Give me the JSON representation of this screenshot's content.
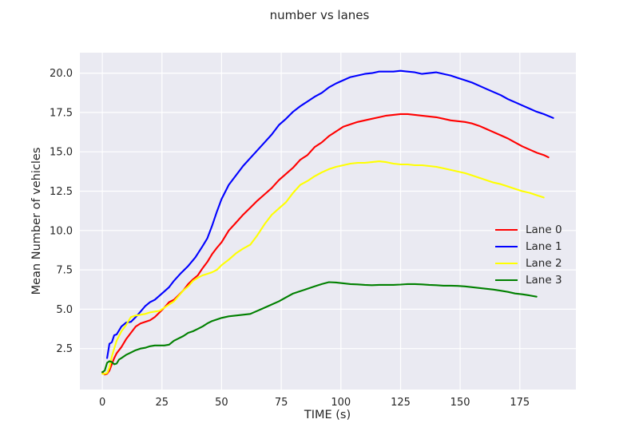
{
  "chart_data": {
    "type": "line",
    "title": "number vs lanes",
    "xlabel": "TIME (s)",
    "ylabel": "Mean Number of vehicles",
    "xlim": [
      -9.4,
      198.5
    ],
    "ylim": [
      -0.1,
      21.3
    ],
    "xticks": [
      0,
      25,
      50,
      75,
      100,
      125,
      150,
      175
    ],
    "xtick_labels": [
      "0",
      "25",
      "50",
      "75",
      "100",
      "125",
      "150",
      "175"
    ],
    "yticks": [
      2.5,
      5.0,
      7.5,
      10.0,
      12.5,
      15.0,
      17.5,
      20.0
    ],
    "ytick_labels": [
      "2.5",
      "5.0",
      "7.5",
      "10.0",
      "12.5",
      "15.0",
      "17.5",
      "20.0"
    ],
    "grid": true,
    "background": "#eaeaf2",
    "grid_color": "#ffffff",
    "legend": {
      "position": "right-middle",
      "labels": [
        "Lane 0",
        "Lane 1",
        "Lane 2",
        "Lane 3"
      ]
    },
    "series": [
      {
        "name": "Lane 0",
        "color": "#ff0000",
        "x": [
          0,
          1,
          2,
          3,
          4,
          5,
          6,
          7,
          8,
          10,
          12,
          14,
          16,
          18,
          20,
          22,
          24,
          26,
          28,
          30,
          32,
          34,
          36,
          38,
          40,
          42,
          44,
          46,
          48,
          50,
          53,
          56,
          59,
          62,
          65,
          68,
          71,
          74,
          77,
          80,
          83,
          86,
          89,
          92,
          95,
          98,
          101,
          104,
          107,
          110,
          113,
          116,
          119,
          122,
          125,
          128,
          131,
          134,
          137,
          140,
          143,
          146,
          149,
          152,
          155,
          158,
          161,
          164,
          167,
          170,
          173,
          176,
          179,
          182,
          185,
          187
        ],
        "y": [
          1.0,
          0.85,
          0.9,
          1.1,
          1.5,
          1.9,
          2.2,
          2.4,
          2.6,
          3.1,
          3.5,
          3.9,
          4.1,
          4.2,
          4.3,
          4.5,
          4.8,
          5.1,
          5.45,
          5.6,
          5.9,
          6.2,
          6.6,
          6.9,
          7.15,
          7.6,
          8.0,
          8.5,
          8.9,
          9.25,
          10.0,
          10.5,
          11.0,
          11.45,
          11.9,
          12.3,
          12.7,
          13.2,
          13.6,
          14.0,
          14.5,
          14.8,
          15.3,
          15.6,
          16.0,
          16.3,
          16.6,
          16.75,
          16.9,
          17.0,
          17.1,
          17.2,
          17.3,
          17.35,
          17.4,
          17.4,
          17.35,
          17.3,
          17.25,
          17.2,
          17.1,
          17.0,
          16.95,
          16.9,
          16.8,
          16.65,
          16.45,
          16.25,
          16.05,
          15.85,
          15.6,
          15.35,
          15.15,
          14.95,
          14.8,
          14.65
        ]
      },
      {
        "name": "Lane 1",
        "color": "#0000ff",
        "x": [
          2,
          3,
          4,
          5,
          6,
          8,
          10,
          12,
          14,
          16,
          18,
          20,
          22,
          25,
          28,
          30,
          33,
          36,
          39,
          42,
          44,
          46,
          48,
          50,
          53,
          56,
          59,
          62,
          65,
          68,
          71,
          74,
          77,
          80,
          83,
          86,
          89,
          92,
          95,
          98,
          101,
          104,
          107,
          110,
          113,
          116,
          119,
          122,
          125,
          128,
          131,
          134,
          137,
          140,
          143,
          146,
          149,
          152,
          155,
          158,
          161,
          164,
          167,
          170,
          173,
          176,
          179,
          182,
          185,
          189
        ],
        "y": [
          1.9,
          2.8,
          2.9,
          3.35,
          3.4,
          3.9,
          4.15,
          4.2,
          4.5,
          4.85,
          5.2,
          5.45,
          5.6,
          6.0,
          6.4,
          6.8,
          7.3,
          7.75,
          8.3,
          9.0,
          9.5,
          10.3,
          11.2,
          12.0,
          12.9,
          13.5,
          14.1,
          14.6,
          15.1,
          15.6,
          16.1,
          16.7,
          17.1,
          17.55,
          17.9,
          18.2,
          18.5,
          18.75,
          19.1,
          19.35,
          19.55,
          19.75,
          19.85,
          19.95,
          20.0,
          20.1,
          20.1,
          20.1,
          20.15,
          20.1,
          20.05,
          19.95,
          20.0,
          20.05,
          19.95,
          19.85,
          19.7,
          19.55,
          19.4,
          19.2,
          19.0,
          18.8,
          18.6,
          18.35,
          18.15,
          17.95,
          17.75,
          17.55,
          17.4,
          17.15
        ]
      },
      {
        "name": "Lane 2",
        "color": "#ffff00",
        "x": [
          0,
          1,
          2,
          3,
          4,
          5,
          6,
          7,
          8,
          9,
          10,
          11,
          12,
          14,
          16,
          18,
          20,
          22,
          24,
          26,
          28,
          30,
          32,
          34,
          36,
          38,
          40,
          42,
          44,
          46,
          48,
          50,
          53,
          56,
          59,
          62,
          65,
          68,
          71,
          74,
          77,
          80,
          83,
          86,
          89,
          92,
          95,
          98,
          101,
          104,
          107,
          110,
          113,
          116,
          119,
          122,
          125,
          128,
          131,
          134,
          137,
          140,
          143,
          146,
          149,
          152,
          155,
          158,
          161,
          164,
          167,
          170,
          173,
          176,
          179,
          182,
          185
        ],
        "y": [
          0.9,
          0.9,
          0.95,
          1.3,
          2.0,
          2.5,
          3.0,
          3.3,
          3.6,
          3.8,
          4.0,
          4.25,
          4.5,
          4.6,
          4.65,
          4.7,
          4.8,
          4.85,
          4.9,
          5.1,
          5.3,
          5.5,
          5.85,
          6.2,
          6.45,
          6.8,
          7.0,
          7.15,
          7.25,
          7.35,
          7.5,
          7.8,
          8.15,
          8.55,
          8.85,
          9.1,
          9.7,
          10.4,
          11.0,
          11.4,
          11.8,
          12.4,
          12.9,
          13.15,
          13.45,
          13.7,
          13.9,
          14.05,
          14.15,
          14.25,
          14.3,
          14.3,
          14.35,
          14.4,
          14.35,
          14.25,
          14.2,
          14.2,
          14.15,
          14.15,
          14.1,
          14.05,
          13.95,
          13.85,
          13.75,
          13.65,
          13.5,
          13.35,
          13.2,
          13.05,
          12.95,
          12.8,
          12.65,
          12.5,
          12.4,
          12.25,
          12.1
        ]
      },
      {
        "name": "Lane 3",
        "color": "#008000",
        "x": [
          0,
          1,
          2,
          3,
          4,
          5,
          6,
          7,
          8,
          10,
          12,
          14,
          16,
          18,
          20,
          22,
          24,
          26,
          28,
          30,
          32,
          34,
          36,
          38,
          40,
          42,
          44,
          46,
          48,
          50,
          53,
          56,
          59,
          62,
          65,
          68,
          71,
          74,
          77,
          80,
          83,
          86,
          89,
          92,
          95,
          98,
          101,
          104,
          107,
          110,
          113,
          116,
          119,
          122,
          125,
          128,
          131,
          134,
          137,
          140,
          143,
          146,
          149,
          152,
          155,
          158,
          161,
          164,
          167,
          170,
          173,
          176,
          179,
          182
        ],
        "y": [
          1.0,
          1.1,
          1.6,
          1.7,
          1.65,
          1.5,
          1.55,
          1.8,
          1.9,
          2.1,
          2.25,
          2.4,
          2.5,
          2.55,
          2.65,
          2.7,
          2.7,
          2.7,
          2.75,
          3.0,
          3.15,
          3.3,
          3.5,
          3.6,
          3.75,
          3.9,
          4.1,
          4.25,
          4.35,
          4.45,
          4.55,
          4.6,
          4.65,
          4.7,
          4.9,
          5.1,
          5.3,
          5.5,
          5.75,
          6.0,
          6.15,
          6.3,
          6.45,
          6.6,
          6.72,
          6.7,
          6.65,
          6.6,
          6.58,
          6.55,
          6.53,
          6.55,
          6.55,
          6.55,
          6.57,
          6.6,
          6.6,
          6.58,
          6.55,
          6.53,
          6.5,
          6.5,
          6.48,
          6.45,
          6.4,
          6.35,
          6.3,
          6.25,
          6.18,
          6.1,
          6.0,
          5.95,
          5.88,
          5.8
        ]
      }
    ]
  }
}
